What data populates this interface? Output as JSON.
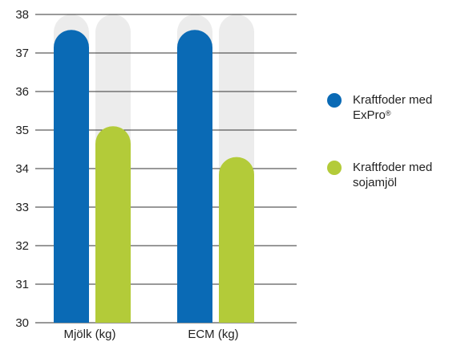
{
  "chart_data": {
    "type": "bar",
    "title": "",
    "xlabel": "",
    "ylabel": "",
    "categories": [
      "Mjölk (kg)",
      "ECM (kg)"
    ],
    "ylim": [
      30,
      38
    ],
    "yticks": [
      "30",
      "31",
      "32",
      "33",
      "34",
      "35",
      "36",
      "37",
      "38"
    ],
    "grid": true,
    "background_bar_max": 38,
    "series": [
      {
        "name": "Kraftfoder med ExPro®",
        "values": [
          37.6,
          37.6
        ],
        "color": "#0a6ab5"
      },
      {
        "name": "Kraftfoder med sojamjöl",
        "values": [
          35.1,
          34.3
        ],
        "color": "#b3cb39"
      }
    ],
    "background_bar_color": "#ececec",
    "legend_position": "right"
  },
  "legend": {
    "items": [
      {
        "line1": "Kraftfoder med",
        "line2": "ExPro",
        "sup": "®",
        "color": "#0a6ab5"
      },
      {
        "line1": "Kraftfoder med",
        "line2": "sojamjöl",
        "sup": "",
        "color": "#b3cb39"
      }
    ]
  }
}
